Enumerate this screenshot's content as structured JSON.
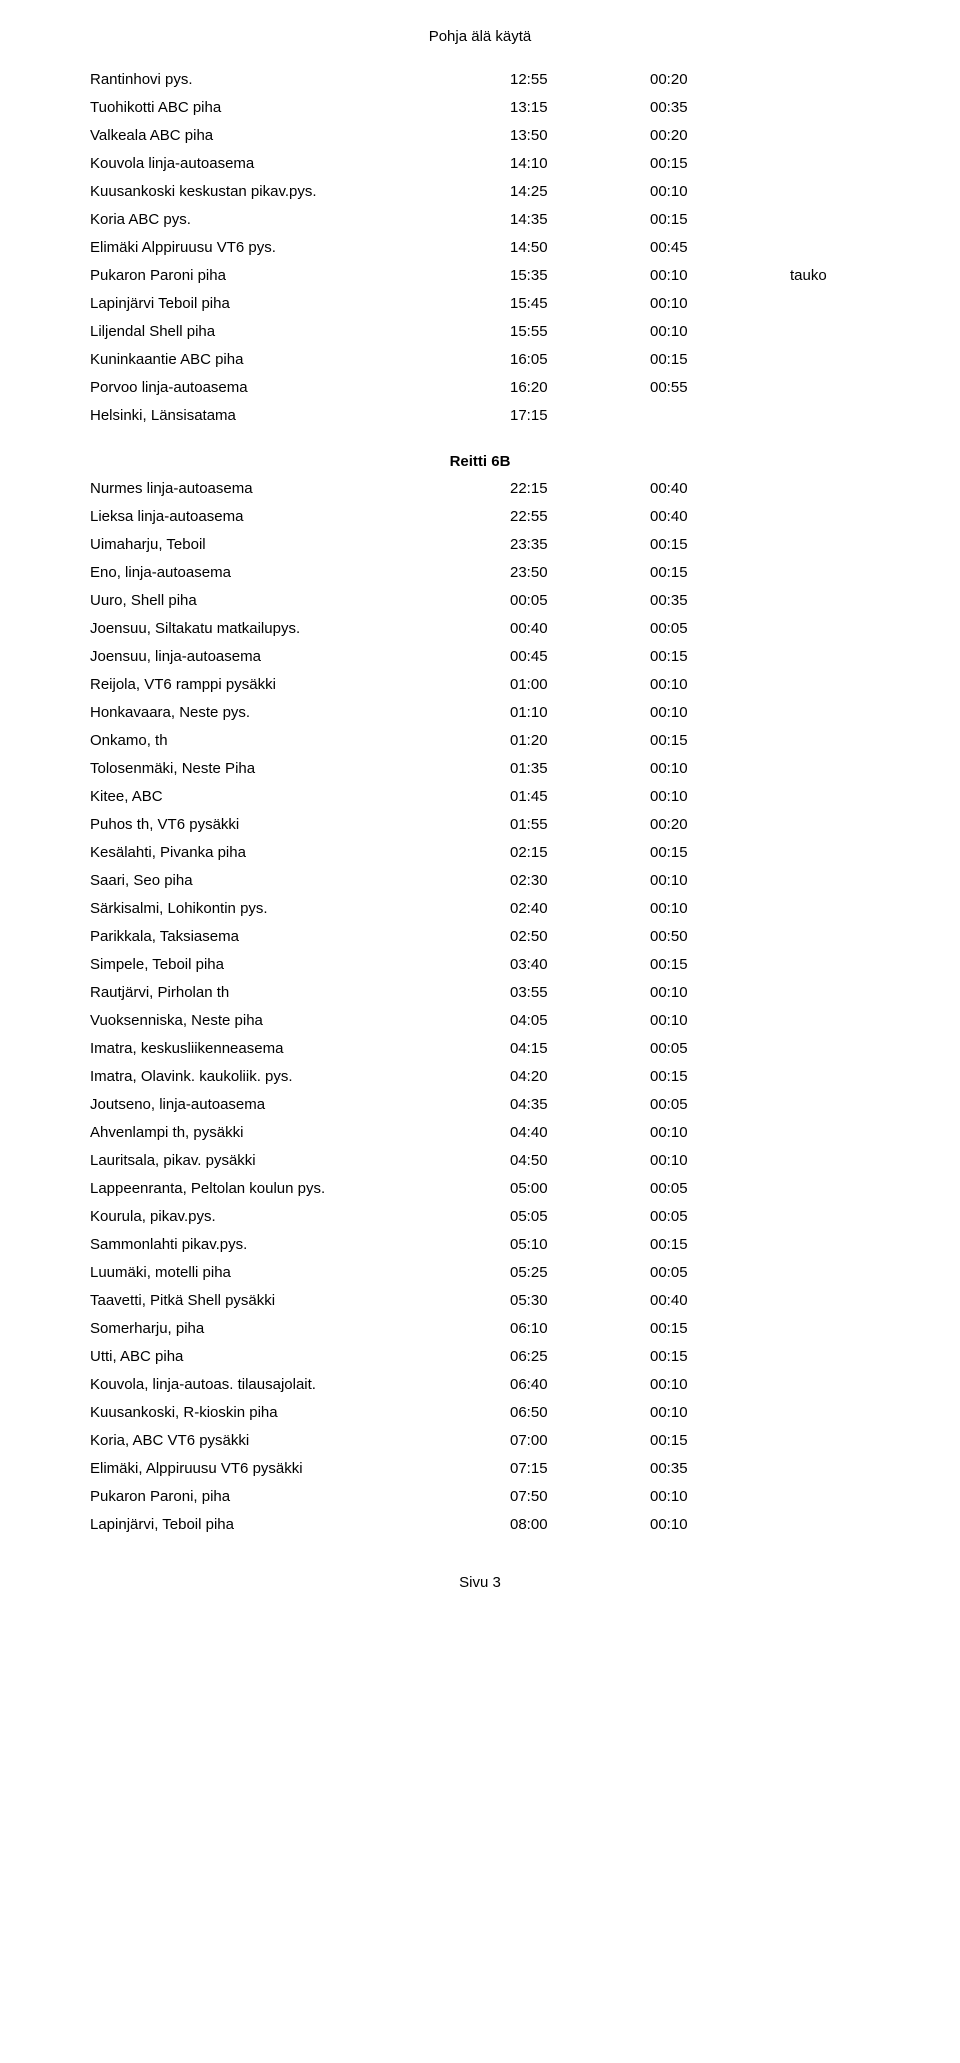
{
  "title": "Pohja älä käytä",
  "footer": "Sivu 3",
  "sections": [
    {
      "heading": null,
      "rows": [
        {
          "stop": "Rantinhovi pys.",
          "time": "12:55",
          "duration": "00:20",
          "note": ""
        },
        {
          "stop": "Tuohikotti ABC piha",
          "time": "13:15",
          "duration": "00:35",
          "note": ""
        },
        {
          "stop": "Valkeala ABC piha",
          "time": "13:50",
          "duration": "00:20",
          "note": ""
        },
        {
          "stop": "Kouvola linja-autoasema",
          "time": "14:10",
          "duration": "00:15",
          "note": ""
        },
        {
          "stop": "Kuusankoski keskustan pikav.pys.",
          "time": "14:25",
          "duration": "00:10",
          "note": ""
        },
        {
          "stop": "Koria ABC pys.",
          "time": "14:35",
          "duration": "00:15",
          "note": ""
        },
        {
          "stop": "Elimäki Alppiruusu VT6 pys.",
          "time": "14:50",
          "duration": "00:45",
          "note": ""
        },
        {
          "stop": "Pukaron Paroni piha",
          "time": "15:35",
          "duration": "00:10",
          "note": "tauko"
        },
        {
          "stop": "Lapinjärvi Teboil piha",
          "time": "15:45",
          "duration": "00:10",
          "note": ""
        },
        {
          "stop": "Liljendal Shell piha",
          "time": "15:55",
          "duration": "00:10",
          "note": ""
        },
        {
          "stop": "Kuninkaantie ABC piha",
          "time": "16:05",
          "duration": "00:15",
          "note": ""
        },
        {
          "stop": "Porvoo linja-autoasema",
          "time": "16:20",
          "duration": "00:55",
          "note": ""
        },
        {
          "stop": "Helsinki, Länsisatama",
          "time": "17:15",
          "duration": "",
          "note": ""
        }
      ]
    },
    {
      "heading": "Reitti 6B",
      "rows": [
        {
          "stop": "Nurmes linja-autoasema",
          "time": "22:15",
          "duration": "00:40",
          "note": ""
        },
        {
          "stop": "Lieksa linja-autoasema",
          "time": "22:55",
          "duration": "00:40",
          "note": ""
        },
        {
          "stop": "Uimaharju, Teboil",
          "time": "23:35",
          "duration": "00:15",
          "note": ""
        },
        {
          "stop": "Eno, linja-autoasema",
          "time": "23:50",
          "duration": "00:15",
          "note": ""
        },
        {
          "stop": "Uuro, Shell piha",
          "time": "00:05",
          "duration": "00:35",
          "note": ""
        },
        {
          "stop": "Joensuu, Siltakatu matkailupys.",
          "time": "00:40",
          "duration": "00:05",
          "note": ""
        },
        {
          "stop": "Joensuu, linja-autoasema",
          "time": "00:45",
          "duration": "00:15",
          "note": ""
        },
        {
          "stop": "Reijola, VT6 ramppi pysäkki",
          "time": "01:00",
          "duration": "00:10",
          "note": ""
        },
        {
          "stop": "Honkavaara, Neste pys.",
          "time": "01:10",
          "duration": "00:10",
          "note": ""
        },
        {
          "stop": "Onkamo, th",
          "time": "01:20",
          "duration": "00:15",
          "note": ""
        },
        {
          "stop": "Tolosenmäki, Neste Piha",
          "time": "01:35",
          "duration": "00:10",
          "note": ""
        },
        {
          "stop": "Kitee, ABC",
          "time": "01:45",
          "duration": "00:10",
          "note": ""
        },
        {
          "stop": "Puhos th, VT6 pysäkki",
          "time": "01:55",
          "duration": "00:20",
          "note": ""
        },
        {
          "stop": "Kesälahti, Pivanka piha",
          "time": "02:15",
          "duration": "00:15",
          "note": ""
        },
        {
          "stop": "Saari, Seo piha",
          "time": "02:30",
          "duration": "00:10",
          "note": ""
        },
        {
          "stop": "Särkisalmi, Lohikontin pys.",
          "time": "02:40",
          "duration": "00:10",
          "note": ""
        },
        {
          "stop": "Parikkala, Taksiasema",
          "time": "02:50",
          "duration": "00:50",
          "note": ""
        },
        {
          "stop": "Simpele, Teboil piha",
          "time": "03:40",
          "duration": "00:15",
          "note": ""
        },
        {
          "stop": "Rautjärvi, Pirholan th",
          "time": "03:55",
          "duration": "00:10",
          "note": ""
        },
        {
          "stop": "Vuoksenniska, Neste piha",
          "time": "04:05",
          "duration": "00:10",
          "note": ""
        },
        {
          "stop": "Imatra, keskusliikenneasema",
          "time": "04:15",
          "duration": "00:05",
          "note": ""
        },
        {
          "stop": "Imatra, Olavink. kaukoliik. pys.",
          "time": "04:20",
          "duration": "00:15",
          "note": ""
        },
        {
          "stop": "Joutseno, linja-autoasema",
          "time": "04:35",
          "duration": "00:05",
          "note": ""
        },
        {
          "stop": "Ahvenlampi th, pysäkki",
          "time": "04:40",
          "duration": "00:10",
          "note": ""
        },
        {
          "stop": "Lauritsala, pikav. pysäkki",
          "time": "04:50",
          "duration": "00:10",
          "note": ""
        },
        {
          "stop": "Lappeenranta, Peltolan koulun pys.",
          "time": "05:00",
          "duration": "00:05",
          "note": ""
        },
        {
          "stop": "Kourula, pikav.pys.",
          "time": "05:05",
          "duration": "00:05",
          "note": ""
        },
        {
          "stop": "Sammonlahti pikav.pys.",
          "time": "05:10",
          "duration": "00:15",
          "note": ""
        },
        {
          "stop": "Luumäki, motelli piha",
          "time": "05:25",
          "duration": "00:05",
          "note": ""
        },
        {
          "stop": "Taavetti, Pitkä Shell pysäkki",
          "time": "05:30",
          "duration": "00:40",
          "note": ""
        },
        {
          "stop": "Somerharju, piha",
          "time": "06:10",
          "duration": "00:15",
          "note": ""
        },
        {
          "stop": "Utti, ABC piha",
          "time": "06:25",
          "duration": "00:15",
          "note": ""
        },
        {
          "stop": "Kouvola, linja-autoas. tilausajolait.",
          "time": "06:40",
          "duration": "00:10",
          "note": ""
        },
        {
          "stop": "Kuusankoski, R-kioskin piha",
          "time": "06:50",
          "duration": "00:10",
          "note": ""
        },
        {
          "stop": "Koria, ABC VT6 pysäkki",
          "time": "07:00",
          "duration": "00:15",
          "note": ""
        },
        {
          "stop": "Elimäki, Alppiruusu VT6 pysäkki",
          "time": "07:15",
          "duration": "00:35",
          "note": ""
        },
        {
          "stop": "Pukaron Paroni, piha",
          "time": "07:50",
          "duration": "00:10",
          "note": ""
        },
        {
          "stop": "Lapinjärvi, Teboil piha",
          "time": "08:00",
          "duration": "00:10",
          "note": ""
        }
      ]
    }
  ]
}
